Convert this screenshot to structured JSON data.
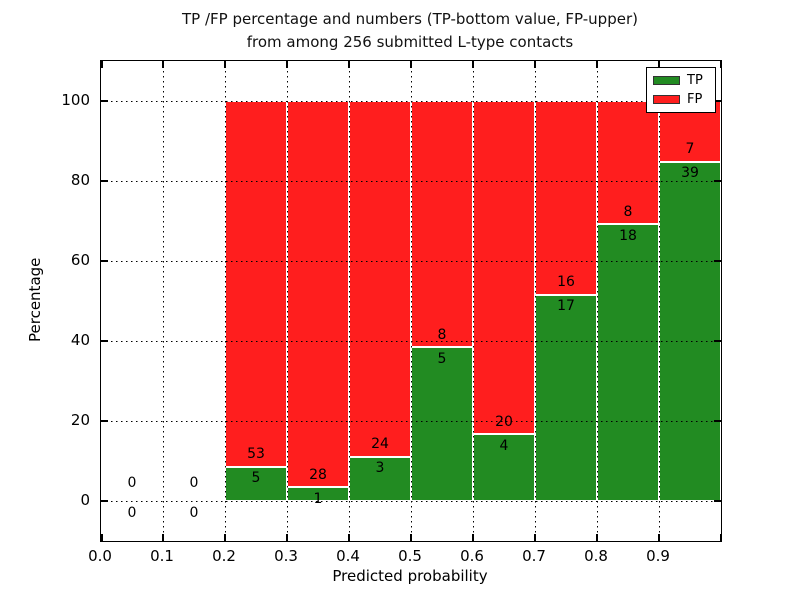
{
  "chart_data": {
    "type": "bar",
    "variant": "stacked-percentage-histogram",
    "title_line1": "TP /FP percentage and numbers (TP-bottom value, FP-upper)",
    "title_line2": "from among 256 submitted L-type contacts",
    "xlabel": "Predicted probability",
    "ylabel": "Percentage",
    "xlim": [
      0.0,
      1.0
    ],
    "ylim": [
      -10,
      110
    ],
    "grid": true,
    "x_ticks": [
      "0.0",
      "0.1",
      "0.2",
      "0.3",
      "0.4",
      "0.5",
      "0.6",
      "0.7",
      "0.8",
      "0.9"
    ],
    "x_tick_values": [
      0.0,
      0.1,
      0.2,
      0.3,
      0.4,
      0.5,
      0.6,
      0.7,
      0.8,
      0.9
    ],
    "y_ticks": [
      "0",
      "20",
      "40",
      "60",
      "80",
      "100"
    ],
    "y_tick_values": [
      0,
      20,
      40,
      60,
      80,
      100
    ],
    "bin_width": 0.1,
    "bins": [
      {
        "x0": 0.0,
        "x1": 0.1,
        "tp": 0,
        "fp": 0
      },
      {
        "x0": 0.1,
        "x1": 0.2,
        "tp": 0,
        "fp": 0
      },
      {
        "x0": 0.2,
        "x1": 0.3,
        "tp": 5,
        "fp": 53
      },
      {
        "x0": 0.3,
        "x1": 0.4,
        "tp": 1,
        "fp": 28
      },
      {
        "x0": 0.4,
        "x1": 0.5,
        "tp": 3,
        "fp": 24
      },
      {
        "x0": 0.5,
        "x1": 0.6,
        "tp": 5,
        "fp": 8
      },
      {
        "x0": 0.6,
        "x1": 0.7,
        "tp": 4,
        "fp": 20
      },
      {
        "x0": 0.7,
        "x1": 0.8,
        "tp": 17,
        "fp": 16
      },
      {
        "x0": 0.8,
        "x1": 0.9,
        "tp": 18,
        "fp": 8
      },
      {
        "x0": 0.9,
        "x1": 1.0,
        "tp": 39,
        "fp": 7
      }
    ],
    "colors": {
      "tp": "#228b22",
      "fp": "#ff1e1e",
      "bar_edge": "#ffffff",
      "grid": "#000000"
    },
    "legend": {
      "position": "upper right",
      "entries": [
        {
          "label": "TP",
          "color": "#228b22"
        },
        {
          "label": "FP",
          "color": "#ff1e1e"
        }
      ]
    }
  }
}
